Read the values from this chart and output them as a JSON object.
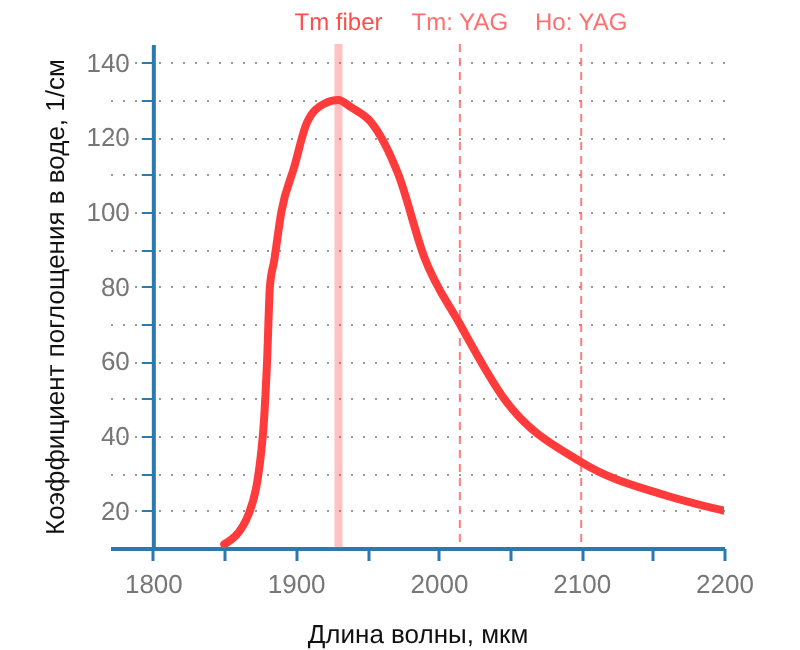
{
  "chart_data": {
    "type": "line",
    "xlabel": "Длина волны, мкм",
    "ylabel": "Коэффициент поглощения в воде, 1/см",
    "x": [
      1850,
      1867,
      1877,
      1880,
      1882,
      1885,
      1890,
      1899,
      1908,
      1920,
      1930,
      1939,
      1953,
      1972,
      1990,
      2015,
      2046,
      2100,
      2160,
      2200
    ],
    "series": [
      {
        "color": "#ff3b3b",
        "values": [
          11,
          19,
          40,
          60,
          80,
          87,
          100,
          112,
          124,
          129,
          130,
          128,
          124,
          110,
          88,
          70,
          50,
          33,
          24,
          20
        ]
      }
    ],
    "xlim": [
      1770,
      2200
    ],
    "ylim": [
      10,
      145
    ],
    "xticks": [
      1800,
      {
        "value": 1850,
        "label": null
      },
      1900,
      {
        "value": 1950,
        "label": null
      },
      2000,
      {
        "value": 2050,
        "label": null
      },
      2100,
      {
        "value": 2150,
        "label": null
      },
      2200
    ],
    "yticks": [
      20,
      {
        "value": 30,
        "label": null
      },
      40,
      {
        "value": 50,
        "label": null
      },
      60,
      {
        "value": 70,
        "label": null
      },
      80,
      {
        "value": 90,
        "label": null
      },
      100,
      {
        "value": 110,
        "label": null
      },
      120,
      {
        "value": 130,
        "label": null
      },
      140
    ],
    "grid": "y",
    "line_style": "solid",
    "ref_lines": [
      {
        "axis": "x",
        "value": 1930,
        "label": "Tm fiber",
        "color": "#ff4d4d",
        "line_style": "solid"
      },
      {
        "axis": "x",
        "value": 2015,
        "label": "Tm: YAG",
        "color": "#ff6f6f",
        "line_style": "dashed"
      },
      {
        "axis": "x",
        "value": 2100,
        "label": "Ho: YAG",
        "color": "#ff6f6f",
        "line_style": "dashed"
      }
    ]
  }
}
